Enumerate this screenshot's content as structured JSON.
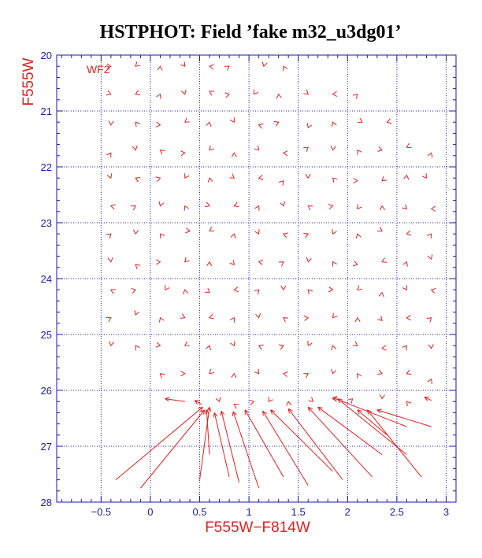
{
  "chart_data": {
    "type": "scatter",
    "title": "HSTPHOT: Field ’fake m32_u3dg01’",
    "xlabel": "F555W−F814W",
    "ylabel": "F555W",
    "field_label": "WF2",
    "xlim": [
      -0.95,
      3.1
    ],
    "ylim": [
      28,
      20
    ],
    "y_inverted": true,
    "grid": true,
    "grid_style": "dotted",
    "x_ticks": [
      -0.5,
      0,
      0.5,
      1,
      1.5,
      2,
      2.5,
      3
    ],
    "x_tick_labels": [
      "−0.5",
      "0",
      "0.5",
      "1",
      "1.5",
      "2",
      "2.5",
      "3"
    ],
    "y_ticks": [
      20,
      21,
      22,
      23,
      24,
      25,
      26,
      27,
      28
    ],
    "y_tick_labels": [
      "20",
      "21",
      "22",
      "23",
      "24",
      "25",
      "26",
      "27",
      "28"
    ],
    "colors": {
      "arrows": "#e02020",
      "axes": "#1a1aa8",
      "grid": "#2222cc",
      "title": "#000000"
    },
    "series": [
      {
        "description": "recovered-vs-input offset vectors for artificial stars",
        "segments": [
          {
            "x1": -0.35,
            "y1": 27.6,
            "x2": 0.53,
            "y2": 26.3
          },
          {
            "x1": -0.1,
            "y1": 27.75,
            "x2": 0.55,
            "y2": 26.35
          },
          {
            "x1": 0.5,
            "y1": 27.6,
            "x2": 0.6,
            "y2": 26.3
          },
          {
            "x1": 0.6,
            "y1": 27.15,
            "x2": 0.57,
            "y2": 26.35
          },
          {
            "x1": 0.8,
            "y1": 27.55,
            "x2": 0.65,
            "y2": 26.4
          },
          {
            "x1": 0.9,
            "y1": 27.65,
            "x2": 0.72,
            "y2": 26.37
          },
          {
            "x1": 1.1,
            "y1": 27.75,
            "x2": 0.84,
            "y2": 26.38
          },
          {
            "x1": 1.35,
            "y1": 27.55,
            "x2": 0.96,
            "y2": 26.35
          },
          {
            "x1": 1.6,
            "y1": 27.7,
            "x2": 1.14,
            "y2": 26.37
          },
          {
            "x1": 1.85,
            "y1": 27.45,
            "x2": 1.22,
            "y2": 26.35
          },
          {
            "x1": 1.95,
            "y1": 27.6,
            "x2": 1.4,
            "y2": 26.33
          },
          {
            "x1": 2.25,
            "y1": 27.55,
            "x2": 1.6,
            "y2": 26.3
          },
          {
            "x1": 2.35,
            "y1": 27.15,
            "x2": 1.7,
            "y2": 26.3
          },
          {
            "x1": 2.6,
            "y1": 27.15,
            "x2": 1.9,
            "y2": 26.15
          },
          {
            "x1": 2.75,
            "y1": 27.55,
            "x2": 2.2,
            "y2": 26.35
          },
          {
            "x1": 2.85,
            "y1": 26.65,
            "x2": 2.3,
            "y2": 26.35
          },
          {
            "x1": 2.6,
            "y1": 26.65,
            "x2": 1.85,
            "y2": 26.13
          },
          {
            "x1": 2.4,
            "y1": 26.8,
            "x2": 2.1,
            "y2": 26.35
          },
          {
            "x1": 0.35,
            "y1": 26.2,
            "x2": 0.15,
            "y2": 26.15
          },
          {
            "x1": 0.52,
            "y1": 26.25,
            "x2": 0.45,
            "y2": 26.18
          },
          {
            "x1": 2.85,
            "y1": 26.18,
            "x2": 2.78,
            "y2": 26.12
          }
        ],
        "markers": [
          {
            "x": -0.4,
            "y": 20.2
          },
          {
            "x": -0.15,
            "y": 20.2
          },
          {
            "x": 0.1,
            "y": 20.2
          },
          {
            "x": 0.35,
            "y": 20.2
          },
          {
            "x": 0.6,
            "y": 20.2
          },
          {
            "x": 0.8,
            "y": 20.2
          },
          {
            "x": 1.15,
            "y": 20.2
          },
          {
            "x": 1.35,
            "y": 20.2
          },
          {
            "x": -0.4,
            "y": 20.7
          },
          {
            "x": -0.15,
            "y": 20.7
          },
          {
            "x": 0.1,
            "y": 20.7
          },
          {
            "x": 0.35,
            "y": 20.7
          },
          {
            "x": 0.6,
            "y": 20.65
          },
          {
            "x": 0.8,
            "y": 20.7
          },
          {
            "x": 1.05,
            "y": 20.7
          },
          {
            "x": 1.3,
            "y": 20.7
          },
          {
            "x": 1.6,
            "y": 20.7
          },
          {
            "x": 1.85,
            "y": 20.7
          },
          {
            "x": 2.1,
            "y": 20.7
          },
          {
            "x": -0.4,
            "y": 21.25
          },
          {
            "x": -0.15,
            "y": 21.2
          },
          {
            "x": 0.1,
            "y": 21.25
          },
          {
            "x": 0.35,
            "y": 21.2
          },
          {
            "x": 0.6,
            "y": 21.2
          },
          {
            "x": 0.85,
            "y": 21.2
          },
          {
            "x": 1.1,
            "y": 21.25
          },
          {
            "x": 1.3,
            "y": 21.2
          },
          {
            "x": 1.6,
            "y": 21.3
          },
          {
            "x": 1.85,
            "y": 21.2
          },
          {
            "x": 2.15,
            "y": 21.2
          },
          {
            "x": 2.4,
            "y": 21.2
          },
          {
            "x": -0.4,
            "y": 21.75
          },
          {
            "x": -0.15,
            "y": 21.7
          },
          {
            "x": 0.1,
            "y": 21.7
          },
          {
            "x": 0.35,
            "y": 21.75
          },
          {
            "x": 0.6,
            "y": 21.7
          },
          {
            "x": 0.85,
            "y": 21.75
          },
          {
            "x": 1.1,
            "y": 21.7
          },
          {
            "x": 1.35,
            "y": 21.75
          },
          {
            "x": 1.6,
            "y": 21.65
          },
          {
            "x": 1.85,
            "y": 21.7
          },
          {
            "x": 2.1,
            "y": 21.7
          },
          {
            "x": 2.35,
            "y": 21.7
          },
          {
            "x": 2.6,
            "y": 21.65
          },
          {
            "x": 2.85,
            "y": 21.75
          },
          {
            "x": -0.4,
            "y": 22.2
          },
          {
            "x": -0.15,
            "y": 22.2
          },
          {
            "x": 0.1,
            "y": 22.2
          },
          {
            "x": 0.35,
            "y": 22.2
          },
          {
            "x": 0.6,
            "y": 22.2
          },
          {
            "x": 0.85,
            "y": 22.2
          },
          {
            "x": 1.1,
            "y": 22.2
          },
          {
            "x": 1.35,
            "y": 22.25
          },
          {
            "x": 1.6,
            "y": 22.2
          },
          {
            "x": 1.85,
            "y": 22.2
          },
          {
            "x": 2.1,
            "y": 22.25
          },
          {
            "x": 2.35,
            "y": 22.25
          },
          {
            "x": 2.6,
            "y": 22.15
          },
          {
            "x": 2.8,
            "y": 22.2
          },
          {
            "x": -0.4,
            "y": 22.7
          },
          {
            "x": -0.15,
            "y": 22.7
          },
          {
            "x": 0.1,
            "y": 22.7
          },
          {
            "x": 0.35,
            "y": 22.7
          },
          {
            "x": 0.6,
            "y": 22.7
          },
          {
            "x": 0.85,
            "y": 22.7
          },
          {
            "x": 1.1,
            "y": 22.7
          },
          {
            "x": 1.35,
            "y": 22.7
          },
          {
            "x": 1.6,
            "y": 22.7
          },
          {
            "x": 1.85,
            "y": 22.7
          },
          {
            "x": 2.1,
            "y": 22.75
          },
          {
            "x": 2.35,
            "y": 22.7
          },
          {
            "x": 2.6,
            "y": 22.75
          },
          {
            "x": 2.85,
            "y": 22.75
          },
          {
            "x": -0.4,
            "y": 23.2
          },
          {
            "x": -0.15,
            "y": 23.2
          },
          {
            "x": 0.1,
            "y": 23.2
          },
          {
            "x": 0.4,
            "y": 23.15
          },
          {
            "x": 0.6,
            "y": 23.15
          },
          {
            "x": 0.85,
            "y": 23.2
          },
          {
            "x": 1.1,
            "y": 23.2
          },
          {
            "x": 1.35,
            "y": 23.2
          },
          {
            "x": 1.6,
            "y": 23.2
          },
          {
            "x": 1.85,
            "y": 23.2
          },
          {
            "x": 2.1,
            "y": 23.2
          },
          {
            "x": 2.35,
            "y": 23.15
          },
          {
            "x": 2.6,
            "y": 23.2
          },
          {
            "x": 2.85,
            "y": 23.2
          },
          {
            "x": -0.4,
            "y": 23.7
          },
          {
            "x": -0.15,
            "y": 23.75
          },
          {
            "x": 0.1,
            "y": 23.7
          },
          {
            "x": 0.35,
            "y": 23.7
          },
          {
            "x": 0.6,
            "y": 23.7
          },
          {
            "x": 0.85,
            "y": 23.75
          },
          {
            "x": 1.1,
            "y": 23.7
          },
          {
            "x": 1.35,
            "y": 23.7
          },
          {
            "x": 1.6,
            "y": 23.7
          },
          {
            "x": 1.85,
            "y": 23.7
          },
          {
            "x": 2.1,
            "y": 23.75
          },
          {
            "x": 2.35,
            "y": 23.7
          },
          {
            "x": 2.6,
            "y": 23.7
          },
          {
            "x": 2.85,
            "y": 23.65
          },
          {
            "x": -0.4,
            "y": 24.2
          },
          {
            "x": -0.15,
            "y": 24.2
          },
          {
            "x": 0.15,
            "y": 24.2
          },
          {
            "x": 0.35,
            "y": 24.2
          },
          {
            "x": 0.6,
            "y": 24.25
          },
          {
            "x": 0.85,
            "y": 24.2
          },
          {
            "x": 1.1,
            "y": 24.2
          },
          {
            "x": 1.35,
            "y": 24.2
          },
          {
            "x": 1.6,
            "y": 24.2
          },
          {
            "x": 1.85,
            "y": 24.2
          },
          {
            "x": 2.1,
            "y": 24.2
          },
          {
            "x": 2.35,
            "y": 24.25
          },
          {
            "x": 2.6,
            "y": 24.2
          },
          {
            "x": 2.85,
            "y": 24.2
          },
          {
            "x": -0.4,
            "y": 24.7
          },
          {
            "x": -0.15,
            "y": 24.65
          },
          {
            "x": 0.1,
            "y": 24.7
          },
          {
            "x": 0.35,
            "y": 24.7
          },
          {
            "x": 0.6,
            "y": 24.7
          },
          {
            "x": 0.85,
            "y": 24.7
          },
          {
            "x": 1.1,
            "y": 24.7
          },
          {
            "x": 1.35,
            "y": 24.7
          },
          {
            "x": 1.6,
            "y": 24.7
          },
          {
            "x": 1.85,
            "y": 24.7
          },
          {
            "x": 2.1,
            "y": 24.7
          },
          {
            "x": 2.35,
            "y": 24.75
          },
          {
            "x": 2.6,
            "y": 24.7
          },
          {
            "x": 2.85,
            "y": 24.7
          },
          {
            "x": -0.4,
            "y": 25.2
          },
          {
            "x": -0.15,
            "y": 25.2
          },
          {
            "x": 0.1,
            "y": 25.2
          },
          {
            "x": 0.35,
            "y": 25.2
          },
          {
            "x": 0.6,
            "y": 25.2
          },
          {
            "x": 0.85,
            "y": 25.2
          },
          {
            "x": 1.1,
            "y": 25.2
          },
          {
            "x": 1.35,
            "y": 25.2
          },
          {
            "x": 1.6,
            "y": 25.2
          },
          {
            "x": 1.85,
            "y": 25.2
          },
          {
            "x": 2.1,
            "y": 25.2
          },
          {
            "x": 2.35,
            "y": 25.25
          },
          {
            "x": 2.6,
            "y": 25.2
          },
          {
            "x": 2.85,
            "y": 25.25
          },
          {
            "x": 0.1,
            "y": 25.7
          },
          {
            "x": 0.35,
            "y": 25.7
          },
          {
            "x": 0.6,
            "y": 25.7
          },
          {
            "x": 0.85,
            "y": 25.7
          },
          {
            "x": 1.1,
            "y": 25.7
          },
          {
            "x": 1.35,
            "y": 25.7
          },
          {
            "x": 1.6,
            "y": 25.7
          },
          {
            "x": 1.85,
            "y": 25.7
          },
          {
            "x": 2.1,
            "y": 25.7
          },
          {
            "x": 2.35,
            "y": 25.7
          },
          {
            "x": 2.6,
            "y": 25.7
          },
          {
            "x": 2.85,
            "y": 25.8
          },
          {
            "x": 0.7,
            "y": 26.2
          },
          {
            "x": 0.85,
            "y": 26.25
          },
          {
            "x": 1.05,
            "y": 26.2
          },
          {
            "x": 1.2,
            "y": 26.2
          },
          {
            "x": 1.4,
            "y": 26.2
          },
          {
            "x": 1.65,
            "y": 26.2
          },
          {
            "x": 1.85,
            "y": 26.15
          },
          {
            "x": 2.05,
            "y": 26.15
          },
          {
            "x": 2.35,
            "y": 26.15
          },
          {
            "x": 2.6,
            "y": 26.2
          }
        ]
      }
    ]
  }
}
